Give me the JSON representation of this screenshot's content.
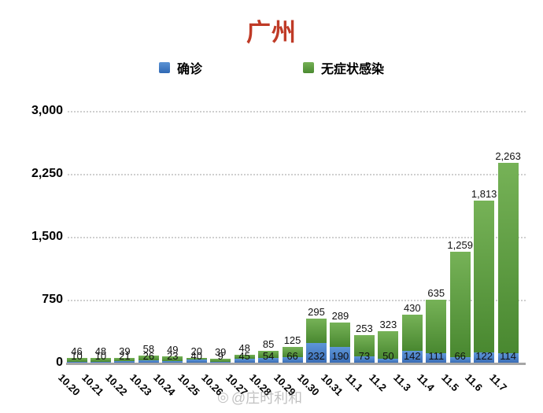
{
  "title": "广州",
  "legend": {
    "confirmed_label": "确诊",
    "asymptomatic_label": "无症状感染"
  },
  "watermark": "@庄时利和",
  "colors": {
    "title_red": "#bf3a26",
    "confirmed_blue": "#4a82c8",
    "asymptomatic_green": "#55983a",
    "gridline_gray": "#cfcfcf",
    "axis_gray": "#a6a6a6"
  },
  "chart_data": {
    "type": "bar",
    "stacked": true,
    "title": "广州",
    "xlabel": "",
    "ylabel": "",
    "ylim": [
      0,
      3000
    ],
    "yticks": [
      0,
      750,
      1500,
      2250,
      3000
    ],
    "grid": "horizontal-dotted",
    "legend_position": "top",
    "categories": [
      "10.20",
      "10.21",
      "10.22",
      "10.23",
      "10.24",
      "10.25",
      "10.26",
      "10.27",
      "10.28",
      "10.29",
      "10.30",
      "10.31",
      "11.1",
      "11.2",
      "11.3",
      "11.4",
      "11.5",
      "11.6",
      "11.7"
    ],
    "series": [
      {
        "name": "确诊",
        "color": "#4a82c8",
        "values": [
          10,
          10,
          21,
          26,
          23,
          40,
          9,
          45,
          54,
          66,
          232,
          190,
          73,
          50,
          142,
          111,
          66,
          122,
          114
        ]
      },
      {
        "name": "无症状感染",
        "color": "#55983a",
        "values": [
          46,
          48,
          39,
          58,
          49,
          20,
          39,
          48,
          85,
          125,
          295,
          289,
          253,
          323,
          430,
          635,
          1259,
          1813,
          2263
        ]
      }
    ]
  }
}
